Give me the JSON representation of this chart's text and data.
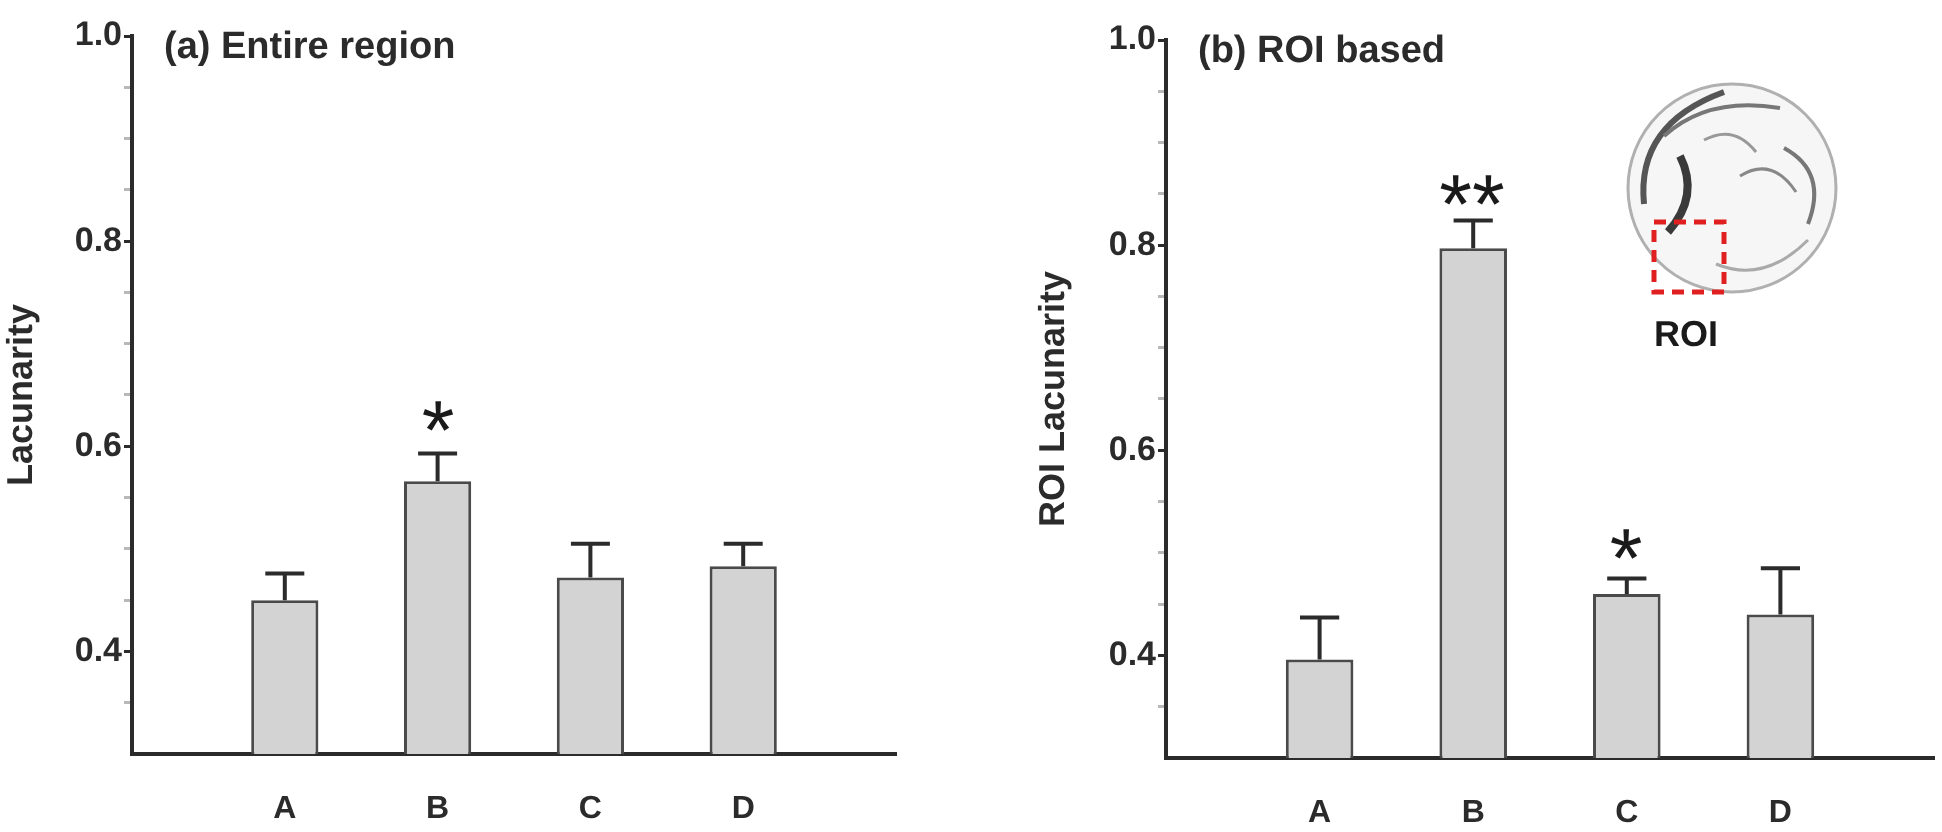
{
  "chart_data": [
    {
      "type": "bar",
      "title": "(a) Entire region",
      "ylabel": "Lacunarity",
      "categories": [
        "A",
        "B",
        "C",
        "D"
      ],
      "values": [
        0.45,
        0.566,
        0.472,
        0.483
      ],
      "errors": [
        0.026,
        0.027,
        0.033,
        0.022
      ],
      "color": "#d3d3d3",
      "ylim": [
        0.3,
        1.0
      ],
      "yticks": [
        {
          "value": 0.35,
          "label": null
        },
        0.4,
        {
          "value": 0.45,
          "label": null
        },
        {
          "value": 0.5,
          "label": null
        },
        {
          "value": 0.55,
          "label": null
        },
        0.6,
        {
          "value": 0.65,
          "label": null
        },
        {
          "value": 0.7,
          "label": null
        },
        {
          "value": 0.75,
          "label": null
        },
        0.8,
        {
          "value": 0.85,
          "label": null
        },
        {
          "value": 0.9,
          "label": null
        },
        {
          "value": 0.95,
          "label": null
        },
        {
          "value": 1,
          "label": "1.0"
        }
      ],
      "annotations": [
        "*"
      ]
    },
    {
      "type": "bar",
      "title": "(b) ROI based",
      "ylabel": "ROI Lacunarity",
      "categories": [
        "A",
        "B",
        "C",
        "D"
      ],
      "values": [
        0.396,
        0.797,
        0.46,
        0.44
      ],
      "errors": [
        0.041,
        0.027,
        0.015,
        0.045
      ],
      "color": "#d3d3d3",
      "ylim": [
        0.3,
        1.0
      ],
      "yticks": [
        {
          "value": 0.35,
          "label": null
        },
        0.4,
        {
          "value": 0.45,
          "label": null
        },
        {
          "value": 0.5,
          "label": null
        },
        {
          "value": 0.55,
          "label": null
        },
        0.6,
        {
          "value": 0.65,
          "label": null
        },
        {
          "value": 0.7,
          "label": null
        },
        {
          "value": 0.75,
          "label": null
        },
        0.8,
        {
          "value": 0.85,
          "label": null
        },
        {
          "value": 0.9,
          "label": null
        },
        {
          "value": 0.95,
          "label": null
        },
        {
          "value": 1,
          "label": "1.0"
        }
      ],
      "annotations": [
        "**",
        "*",
        "ROI"
      ]
    }
  ]
}
